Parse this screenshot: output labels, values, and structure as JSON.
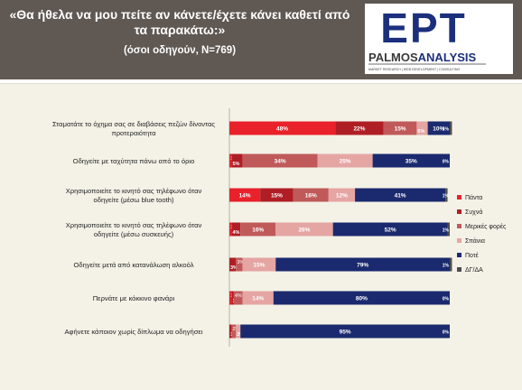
{
  "header": {
    "title_line1": "«Θα ήθελα να μου πείτε αν κάνετε/έχετε κάνει καθετί από",
    "title_line2": "τα παρακάτω:»",
    "subtitle": "(όσοι οδηγούν, Ν=769)"
  },
  "logo": {
    "ept_text": "ΕΡΤ",
    "palmos_text": "PALMOS",
    "analysis_text": "ANALYSIS",
    "tagline": "MARKET RESEARCH | WEB DEVELOPMENT | CONSULTING"
  },
  "colors": {
    "header_bg": "#5f5853",
    "panel_bg": "#f4f2e7",
    "ept_blue": "#1b2f7d"
  },
  "chart_data": {
    "type": "bar",
    "stacked": true,
    "orientation": "horizontal",
    "xlim": [
      0,
      100
    ],
    "value_suffix": "%",
    "legend_position": "right",
    "categories": [
      "Σταματάτε το όχημα σας σε διαβάσεις πεζών δίνοντας προτεραιότητα",
      "Οδηγείτε με ταχύτητα πάνω από το όριο",
      "Χρησιμοποιείτε το κινητό σας τηλέφωνο όταν οδηγείτε (μέσω blue tooth)",
      "Χρησιμοποιείτε το κινητό σας τηλέφωνο όταν οδηγείτε (μέσω συσκευής)",
      "Οδηγείτε μετά από κατανάλωση αλκοόλ",
      "Περνάτε με κόκκινο φανάρι",
      "Αφήνετε κάποιον χωρίς δίπλωμα να οδηγήσει"
    ],
    "series": [
      {
        "name": "Πάντα",
        "color": "#e8212b",
        "values": [
          48,
          1,
          14,
          1,
          0,
          1,
          0
        ]
      },
      {
        "name": "Συχνά",
        "color": "#b01e25",
        "values": [
          22,
          5,
          15,
          4,
          3,
          1,
          1
        ]
      },
      {
        "name": "Μερικές φορές",
        "color": "#c05a5a",
        "values": [
          15,
          34,
          16,
          16,
          3,
          4,
          2
        ]
      },
      {
        "name": "Σπάνια",
        "color": "#e5a5a3",
        "values": [
          5,
          25,
          12,
          26,
          15,
          14,
          2
        ]
      },
      {
        "name": "Ποτέ",
        "color": "#1b2a6e",
        "values": [
          10,
          35,
          41,
          52,
          79,
          80,
          95
        ]
      },
      {
        "name": "ΔΓ/ΔΑ",
        "color": "#4d4d4d",
        "values": [
          1,
          0,
          1,
          1,
          1,
          0,
          0
        ]
      }
    ]
  }
}
